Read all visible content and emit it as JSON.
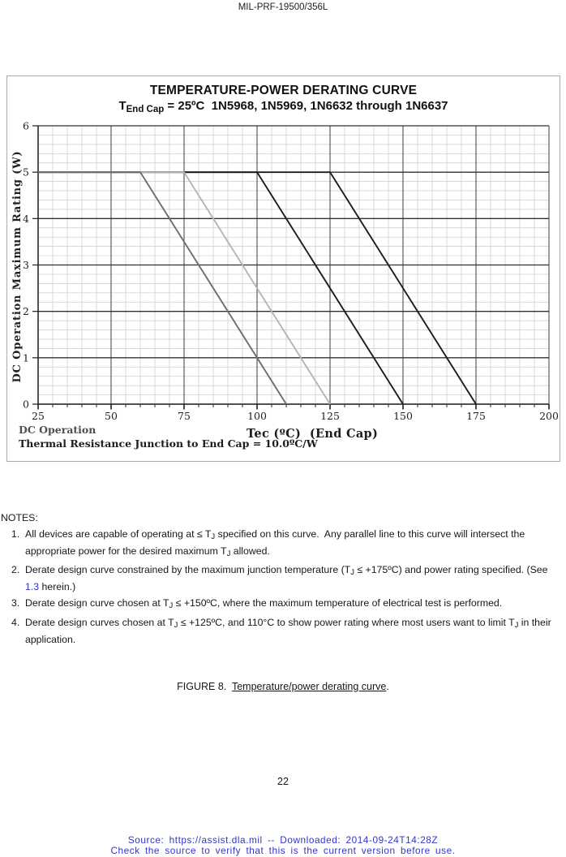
{
  "header": {
    "doc_id": "MIL-PRF-19500/356L"
  },
  "chart": {
    "subtitle": {
      "prefix": "T",
      "subscript": "End Cap",
      "rest": " = 25ºC  1N5968, 1N5969, 1N6632 through 1N6637"
    },
    "xlabel_display": "Tec (ºC)  (End Cap)",
    "footnote_line1": "DC Operation",
    "footnote_line2": "Thermal Resistance Junction to End Cap = 10.0ºC/W"
  },
  "chart_data": {
    "type": "line",
    "title": "TEMPERATURE-POWER DERATING CURVE",
    "subtitle": "T End Cap = 25ºC  1N5968, 1N5969, 1N6632 through 1N6637",
    "xlabel": "Tec (ºC) (End Cap)",
    "ylabel": "DC Operation Maximum Rating (W)",
    "xlim": [
      25,
      200
    ],
    "ylim": [
      0,
      6
    ],
    "x_major_step": 25,
    "x_minor_step": 5,
    "y_major_step": 1,
    "y_minor_step": 0.2,
    "x_ticks": [
      25,
      50,
      75,
      100,
      125,
      150,
      175,
      200
    ],
    "y_ticks": [
      0,
      1,
      2,
      3,
      4,
      5,
      6
    ],
    "grid": true,
    "legend_position": "none",
    "max_power_w": 5,
    "thermal_resistance_c_per_w": 10.0,
    "series": [
      {
        "name": "derating-tj-175c",
        "color": "#1c1c1c",
        "width": 1.9,
        "points": [
          [
            25,
            5
          ],
          [
            125,
            5
          ],
          [
            175,
            0
          ]
        ]
      },
      {
        "name": "derating-tj-150c",
        "color": "#1c1c1c",
        "width": 1.9,
        "points": [
          [
            25,
            5
          ],
          [
            100,
            5
          ],
          [
            150,
            0
          ]
        ]
      },
      {
        "name": "derating-tj-125c",
        "color": "#b5b5b5",
        "width": 1.9,
        "points": [
          [
            25,
            5
          ],
          [
            75,
            5
          ],
          [
            125,
            0
          ]
        ]
      },
      {
        "name": "derating-tj-110c",
        "color": "#6d6d6d",
        "width": 1.9,
        "points": [
          [
            25,
            5
          ],
          [
            60,
            5
          ],
          [
            110,
            0
          ]
        ]
      }
    ]
  },
  "notes": {
    "heading": "NOTES:",
    "items": [
      {
        "number": "1.",
        "segments": [
          {
            "t": "All devices are capable of operating at ≤ T"
          },
          {
            "t": "J",
            "sub": true
          },
          {
            "t": " specified on this curve.  Any parallel line to this curve will intersect the appropriate power for the desired maximum T"
          },
          {
            "t": "J",
            "sub": true
          },
          {
            "t": " allowed."
          }
        ]
      },
      {
        "number": "2.",
        "segments": [
          {
            "t": "Derate design curve constrained by the maximum junction temperature (T"
          },
          {
            "t": "J",
            "sub": true
          },
          {
            "t": " ≤ +175ºC) and power rating specified. (See "
          },
          {
            "t": "1.3",
            "link": true
          },
          {
            "t": " herein.)"
          }
        ]
      },
      {
        "number": "3.",
        "segments": [
          {
            "t": "Derate design curve chosen at T"
          },
          {
            "t": "J",
            "sub": true
          },
          {
            "t": " ≤ +150ºC, where the maximum temperature of electrical test is performed."
          }
        ]
      },
      {
        "number": "4.",
        "segments": [
          {
            "t": "Derate design curves chosen at T"
          },
          {
            "t": "J",
            "sub": true
          },
          {
            "t": " ≤ +125ºC, and 110°C to show power rating where most users want to limit T"
          },
          {
            "t": "J",
            "sub": true
          },
          {
            "t": " in their application."
          }
        ]
      }
    ]
  },
  "figure": {
    "prefix": "FIGURE 8.  ",
    "underlined": "Temperature/power derating curve",
    "suffix": "."
  },
  "page_number": "22",
  "footer": {
    "line1": "Source: https://assist.dla.mil -- Downloaded: 2014-09-24T14:28Z",
    "line2": "Check the source to verify that this is the current version before use."
  },
  "colors": {
    "link_blue": "#3333cc",
    "footer_blue": "#3434cf",
    "grid_minor": "#cbcbcb",
    "grid_major_v": "#4d4d4d",
    "grid_major_h": "#303030",
    "axis": "#2b2b2b"
  }
}
